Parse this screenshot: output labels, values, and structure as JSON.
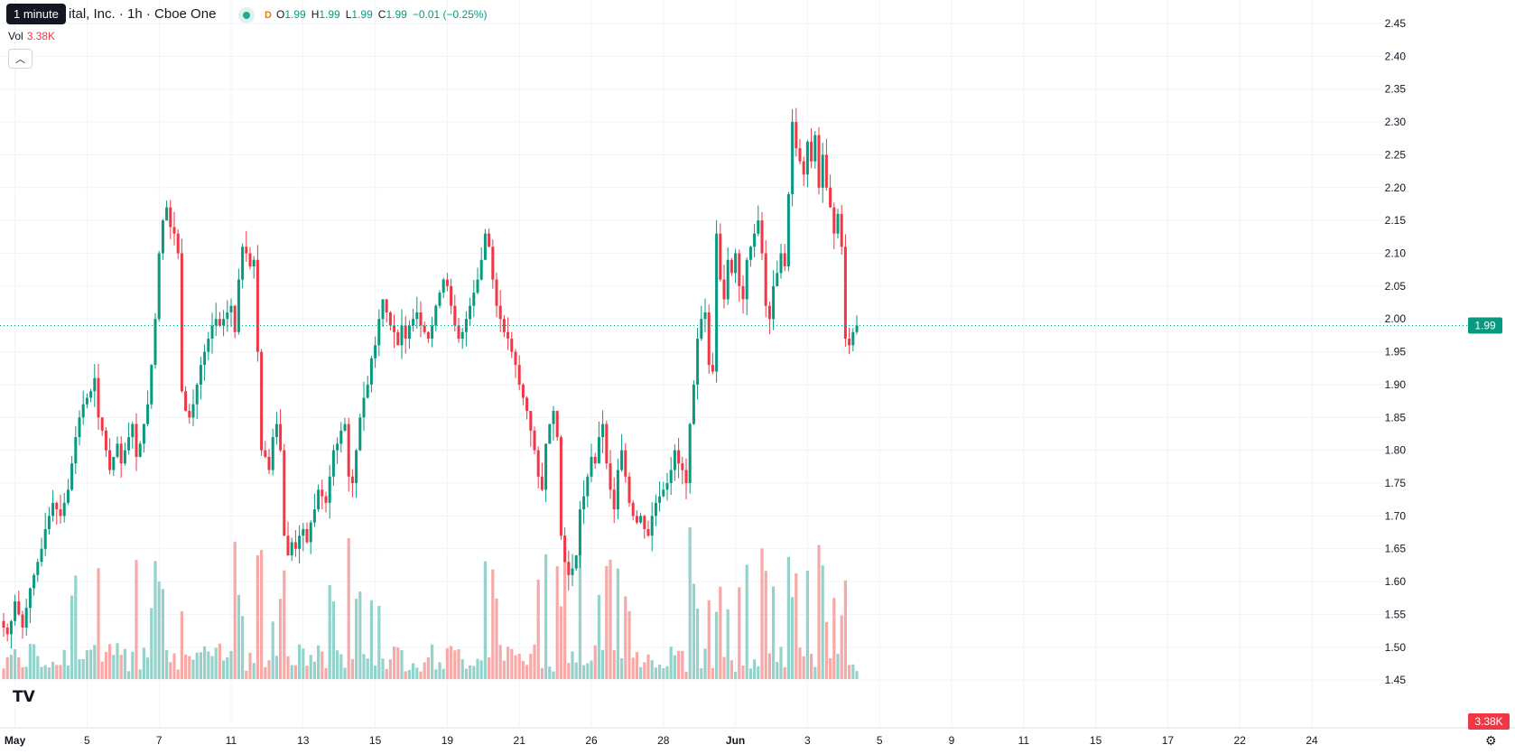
{
  "header": {
    "tooltip": "1 minute",
    "title": "ital, Inc. · 1h · Cboe One",
    "flag": "D",
    "ohlc": [
      {
        "k": "O",
        "v": "1.99"
      },
      {
        "k": "H",
        "v": "1.99"
      },
      {
        "k": "L",
        "v": "1.99"
      },
      {
        "k": "C",
        "v": "1.99"
      },
      {
        "k": "",
        "v": "−0.01 (−0.25%)"
      }
    ],
    "vol_label": "Vol",
    "vol_value": "3.38K"
  },
  "logo_text": "TV",
  "colors": {
    "up": "#089981",
    "down": "#f23645",
    "vol_up": "#94d3cb",
    "vol_down": "#f7a9a7",
    "grid": "#f0f3fa"
  },
  "chart_data": {
    "type": "candlestick",
    "interval": "1h",
    "y_axis": {
      "min": 1.42,
      "max": 2.45,
      "ticks": [
        "2.45",
        "2.40",
        "2.35",
        "2.30",
        "2.25",
        "2.20",
        "2.15",
        "2.10",
        "2.05",
        "2.00",
        "1.95",
        "1.90",
        "1.85",
        "1.80",
        "1.75",
        "1.70",
        "1.65",
        "1.60",
        "1.55",
        "1.50",
        "1.45"
      ]
    },
    "x_ticks": [
      {
        "label": "May",
        "bold": true,
        "i": 3
      },
      {
        "label": "5",
        "i": 22
      },
      {
        "label": "7",
        "i": 41
      },
      {
        "label": "11",
        "i": 60
      },
      {
        "label": "13",
        "i": 79
      },
      {
        "label": "15",
        "i": 98
      },
      {
        "label": "19",
        "i": 117
      },
      {
        "label": "21",
        "i": 136
      },
      {
        "label": "26",
        "i": 155
      },
      {
        "label": "28",
        "i": 174
      },
      {
        "label": "Jun",
        "bold": true,
        "i": 193
      },
      {
        "label": "3",
        "i": 212
      },
      {
        "label": "5",
        "i": 231
      },
      {
        "label": "9",
        "i": 250
      },
      {
        "label": "11",
        "i": 269
      },
      {
        "label": "15",
        "i": 288
      },
      {
        "label": "17",
        "i": 307
      },
      {
        "label": "22",
        "i": 326
      },
      {
        "label": "24",
        "i": 345
      }
    ],
    "last_price": "1.99",
    "last_volume": "3.38K",
    "close": [
      1.53,
      1.52,
      1.54,
      1.57,
      1.55,
      1.53,
      1.56,
      1.59,
      1.61,
      1.63,
      1.65,
      1.68,
      1.7,
      1.72,
      1.71,
      1.7,
      1.72,
      1.74,
      1.78,
      1.82,
      1.85,
      1.87,
      1.88,
      1.89,
      1.91,
      1.85,
      1.83,
      1.8,
      1.77,
      1.79,
      1.81,
      1.78,
      1.8,
      1.82,
      1.84,
      1.79,
      1.81,
      1.84,
      1.87,
      1.93,
      2.0,
      2.1,
      2.15,
      2.17,
      2.14,
      2.13,
      2.1,
      1.89,
      1.86,
      1.85,
      1.87,
      1.9,
      1.93,
      1.95,
      1.97,
      1.99,
      2.0,
      1.99,
      2.0,
      2.01,
      2.02,
      1.98,
      2.06,
      2.11,
      2.1,
      2.08,
      2.09,
      1.95,
      1.8,
      1.79,
      1.77,
      1.82,
      1.84,
      1.8,
      1.67,
      1.64,
      1.66,
      1.65,
      1.67,
      1.68,
      1.66,
      1.69,
      1.71,
      1.74,
      1.73,
      1.72,
      1.76,
      1.8,
      1.81,
      1.83,
      1.84,
      1.76,
      1.75,
      1.8,
      1.85,
      1.88,
      1.9,
      1.94,
      1.96,
      2.0,
      2.03,
      2.01,
      1.99,
      1.98,
      1.96,
      1.99,
      1.97,
      1.99,
      2.0,
      2.01,
      1.99,
      1.98,
      1.97,
      1.99,
      2.02,
      2.04,
      2.06,
      2.05,
      2.02,
      1.99,
      1.97,
      1.98,
      2.0,
      2.02,
      2.04,
      2.06,
      2.09,
      2.13,
      2.11,
      2.06,
      2.02,
      2.0,
      1.98,
      1.97,
      1.95,
      1.93,
      1.9,
      1.88,
      1.86,
      1.83,
      1.8,
      1.76,
      1.74,
      1.81,
      1.84,
      1.86,
      1.82,
      1.67,
      1.63,
      1.61,
      1.62,
      1.64,
      1.71,
      1.73,
      1.76,
      1.79,
      1.78,
      1.82,
      1.84,
      1.78,
      1.74,
      1.71,
      1.77,
      1.8,
      1.76,
      1.72,
      1.7,
      1.69,
      1.7,
      1.68,
      1.67,
      1.7,
      1.72,
      1.73,
      1.74,
      1.75,
      1.77,
      1.8,
      1.78,
      1.77,
      1.75,
      1.84,
      1.9,
      1.97,
      2.0,
      2.01,
      1.93,
      1.92,
      2.13,
      2.06,
      2.03,
      2.09,
      2.07,
      2.1,
      2.05,
      2.03,
      2.09,
      2.11,
      2.13,
      2.15,
      2.1,
      2.02,
      2.0,
      2.05,
      2.07,
      2.1,
      2.08,
      2.19,
      2.3,
      2.26,
      2.24,
      2.22,
      2.27,
      2.24,
      2.28,
      2.2,
      2.25,
      2.2,
      2.17,
      2.13,
      2.16,
      2.11,
      1.97,
      1.96,
      1.98,
      1.99
    ]
  }
}
